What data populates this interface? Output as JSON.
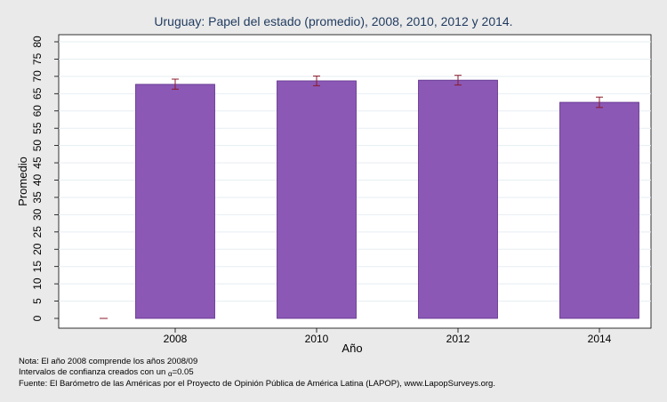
{
  "chart_data": {
    "type": "bar",
    "title": "Uruguay: Papel del estado (promedio), 2008, 2010, 2012 y 2014.",
    "xlabel": "Año",
    "ylabel": "Promedio",
    "categories": [
      "2008",
      "2010",
      "2012",
      "2014"
    ],
    "values": [
      67.7,
      68.7,
      68.9,
      62.5
    ],
    "error_low": [
      66.3,
      67.3,
      67.5,
      61.0
    ],
    "error_high": [
      69.2,
      70.1,
      70.3,
      64.0
    ],
    "ylim": [
      0,
      80
    ],
    "yticks": [
      0,
      5,
      10,
      15,
      20,
      25,
      30,
      35,
      40,
      45,
      50,
      55,
      60,
      65,
      70,
      75,
      80
    ],
    "grid": true,
    "bar_color": "#8b58b5",
    "bar_edge_color": "#5e2f8a",
    "error_color": "#8b1a2b"
  },
  "notes": {
    "line1": "Nota: El año 2008 comprende los años 2008/09",
    "line2_prefix": "Intervalos de confianza creados con un ",
    "line2_alpha": "α",
    "line2_suffix": "=0.05",
    "line3": "Fuente: El Barómetro de las Américas por el Proyecto de Opinión Pública de América Latina (LAPOP), www.LapopSurveys.org."
  }
}
